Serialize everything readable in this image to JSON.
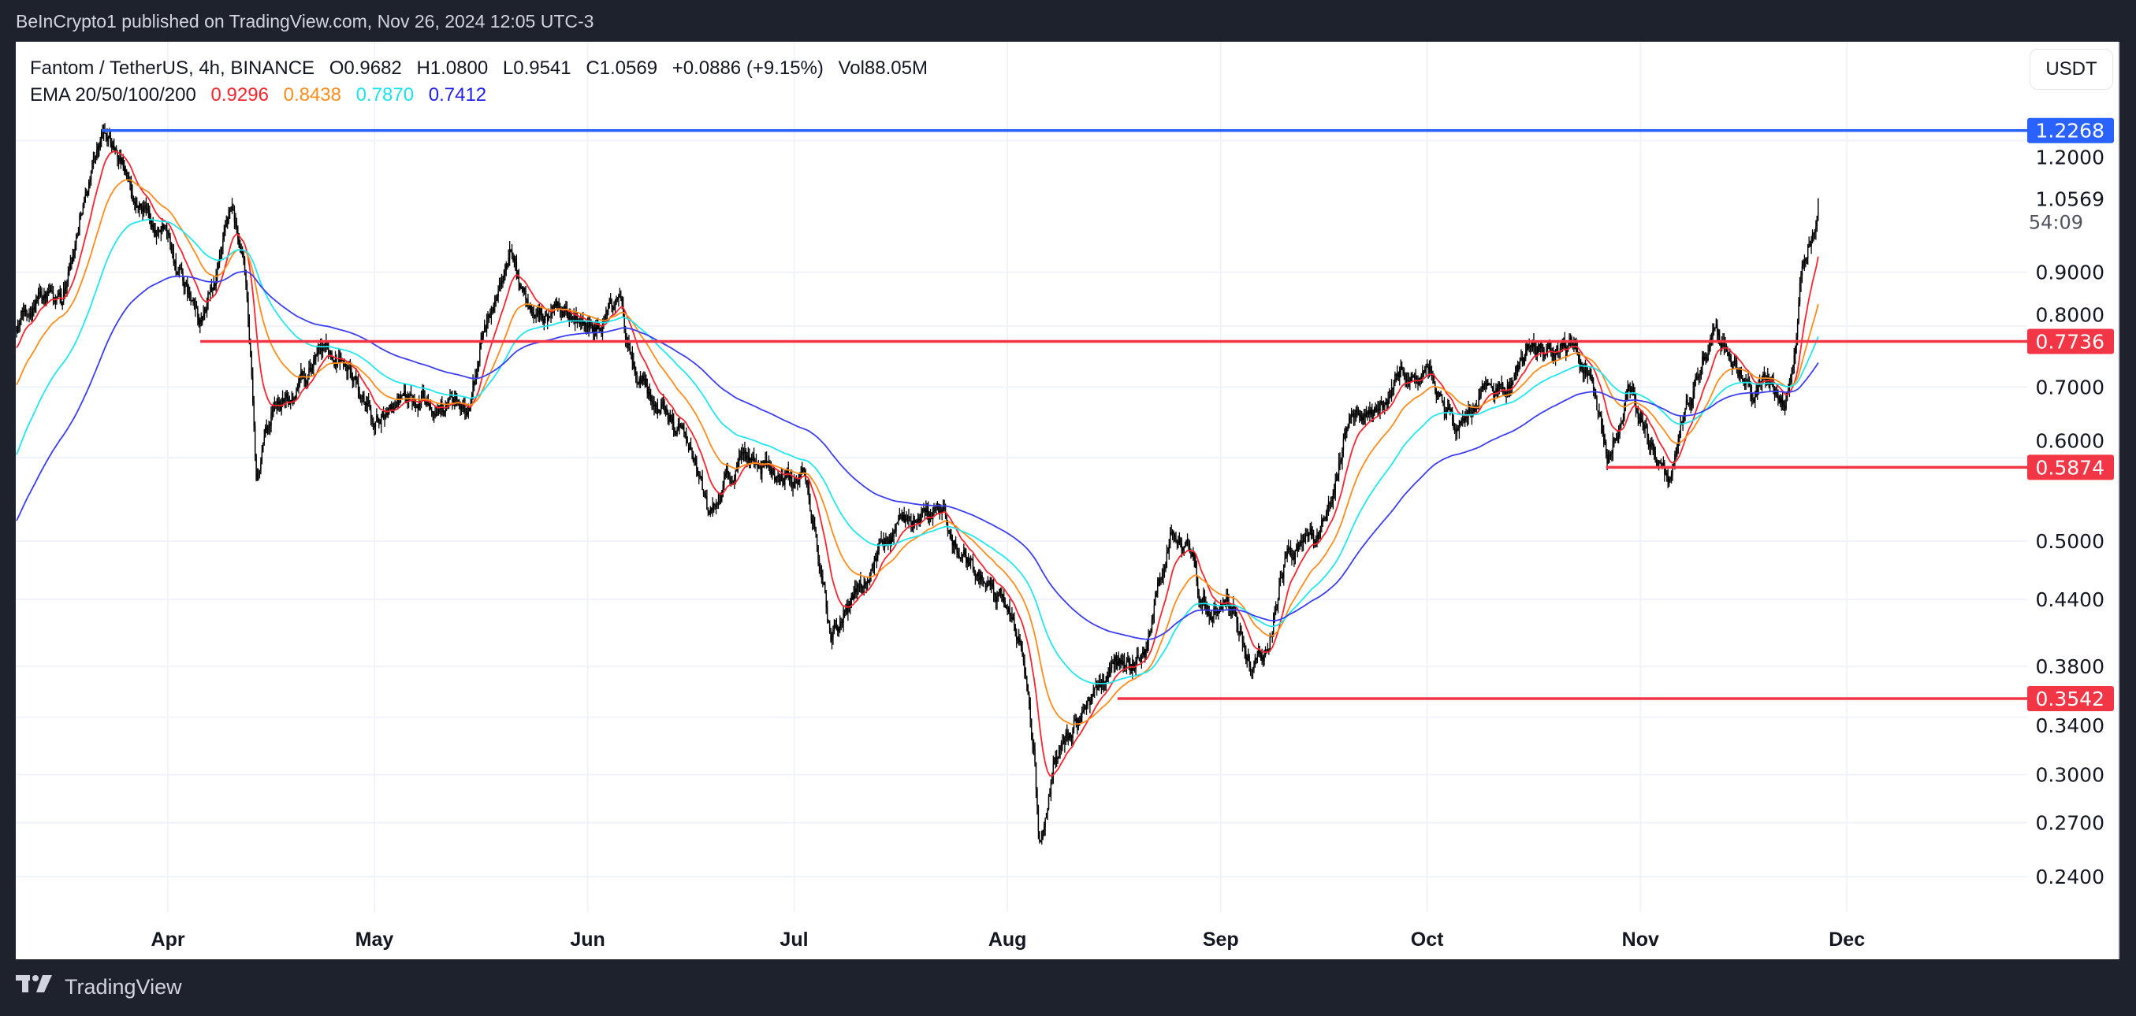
{
  "header": {
    "published": "BeInCrypto1 published on TradingView.com, Nov 26, 2024 12:05 UTC-3"
  },
  "legend": {
    "symbol": "Fantom / TetherUS, 4h, BINANCE",
    "open": "O0.9682",
    "high": "H1.0800",
    "low": "L0.9541",
    "close": "C1.0569",
    "change": "+0.0886 (+9.15%)",
    "volume": "Vol88.05M",
    "ema_label": "EMA 20/50/100/200",
    "ema_values": [
      "0.9296",
      "0.8438",
      "0.7870",
      "0.7412"
    ]
  },
  "currency_button": "USDT",
  "footer": {
    "brand": "TradingView",
    "logo_text": "17"
  },
  "colors": {
    "ema20": "#f7252d",
    "ema50": "#ff8c1a",
    "ema100": "#22e6f0",
    "ema200": "#3b3ff2",
    "resistance": "#f23645",
    "ath": "#2962ff",
    "candle": "#000000"
  },
  "chart_data": {
    "type": "candlestick",
    "title": "Fantom / TetherUS, 4h, BINANCE",
    "scale": "log",
    "x_origin_date": "2024-03-10",
    "x_unit": "days",
    "candle_interval_hours": 4,
    "x_ticks": [
      {
        "label": "Apr",
        "day": 22
      },
      {
        "label": "May",
        "day": 52
      },
      {
        "label": "Jun",
        "day": 83
      },
      {
        "label": "Jul",
        "day": 113
      },
      {
        "label": "Aug",
        "day": 144
      },
      {
        "label": "Sep",
        "day": 175
      },
      {
        "label": "Oct",
        "day": 205
      },
      {
        "label": "Nov",
        "day": 236
      },
      {
        "label": "Dec",
        "day": 266
      }
    ],
    "y_ticks": [
      "1.2000",
      "0.9000",
      "0.8000",
      "0.7000",
      "0.6000",
      "0.5000",
      "0.4400",
      "0.3800",
      "0.3400",
      "0.3000",
      "0.2700",
      "0.2400"
    ],
    "ylim": [
      0.22,
      1.3
    ],
    "price_path": [
      [
        0,
        0.8
      ],
      [
        3.5,
        0.87
      ],
      [
        6.5,
        0.83
      ],
      [
        9.5,
        1.045
      ],
      [
        12.4,
        1.22
      ],
      [
        15.4,
        1.15
      ],
      [
        17.4,
        1.045
      ],
      [
        21.4,
        0.98
      ],
      [
        24.3,
        0.87
      ],
      [
        26.7,
        0.8
      ],
      [
        29.3,
        0.9
      ],
      [
        31.2,
        1.01
      ],
      [
        33.2,
        0.9
      ],
      [
        34.2,
        0.69
      ],
      [
        34.8,
        0.56
      ],
      [
        37.2,
        0.67
      ],
      [
        40.2,
        0.69
      ],
      [
        43.1,
        0.75
      ],
      [
        47.1,
        0.75
      ],
      [
        52,
        0.65
      ],
      [
        57,
        0.69
      ],
      [
        61,
        0.69
      ],
      [
        66,
        0.66
      ],
      [
        68,
        0.8
      ],
      [
        71.8,
        0.94
      ],
      [
        74.8,
        0.83
      ],
      [
        78.8,
        0.82
      ],
      [
        84.7,
        0.8
      ],
      [
        87.7,
        0.85
      ],
      [
        89.7,
        0.71
      ],
      [
        94.6,
        0.67
      ],
      [
        97.6,
        0.63
      ],
      [
        100.5,
        0.526
      ],
      [
        102.5,
        0.57
      ],
      [
        107.5,
        0.6
      ],
      [
        111.4,
        0.565
      ],
      [
        114.4,
        0.58
      ],
      [
        117.4,
        0.454
      ],
      [
        118.4,
        0.403
      ],
      [
        122.3,
        0.454
      ],
      [
        128.3,
        0.519
      ],
      [
        134.2,
        0.53
      ],
      [
        137.2,
        0.48
      ],
      [
        142.1,
        0.454
      ],
      [
        146.1,
        0.403
      ],
      [
        148,
        0.308
      ],
      [
        148.6,
        0.262
      ],
      [
        151,
        0.315
      ],
      [
        156,
        0.347
      ],
      [
        160,
        0.39
      ],
      [
        164,
        0.39
      ],
      [
        168,
        0.52
      ],
      [
        171,
        0.48
      ],
      [
        172,
        0.44
      ],
      [
        177,
        0.43
      ],
      [
        179.3,
        0.38
      ],
      [
        181.7,
        0.39
      ],
      [
        184.7,
        0.495
      ],
      [
        188.6,
        0.495
      ],
      [
        191.6,
        0.57
      ],
      [
        193.6,
        0.66
      ],
      [
        197.5,
        0.67
      ],
      [
        200.5,
        0.72
      ],
      [
        205.5,
        0.71
      ],
      [
        209.4,
        0.63
      ],
      [
        212.4,
        0.68
      ],
      [
        217.3,
        0.7
      ],
      [
        220.3,
        0.77
      ],
      [
        223.3,
        0.74
      ],
      [
        226.3,
        0.77
      ],
      [
        229.2,
        0.69
      ],
      [
        231.2,
        0.6
      ],
      [
        234.2,
        0.71
      ],
      [
        237.1,
        0.63
      ],
      [
        240.1,
        0.56
      ],
      [
        242.1,
        0.65
      ],
      [
        245,
        0.74
      ],
      [
        247,
        0.8
      ],
      [
        249,
        0.74
      ],
      [
        252,
        0.69
      ],
      [
        255,
        0.71
      ],
      [
        257,
        0.67
      ],
      [
        258.5,
        0.76
      ],
      [
        259.3,
        0.9
      ],
      [
        260.9,
        0.98
      ],
      [
        261.9,
        1.0569
      ]
    ],
    "ema_periods": [
      20,
      50,
      100,
      200
    ],
    "ema_seed": [
      0.76,
      0.7,
      0.6,
      0.52
    ],
    "levels": [
      {
        "label": "1.2268",
        "value": 1.2268,
        "from_day": 12.4,
        "color": "ath"
      },
      {
        "label": "0.7736",
        "value": 0.7736,
        "from_day": 26.7,
        "color": "resistance"
      },
      {
        "label": "0.5874",
        "value": 0.5874,
        "from_day": 231,
        "color": "resistance"
      },
      {
        "label": "0.3542",
        "value": 0.3542,
        "from_day": 160,
        "color": "resistance"
      }
    ],
    "last_price": {
      "label": "1.0569",
      "countdown": "54:09"
    }
  }
}
